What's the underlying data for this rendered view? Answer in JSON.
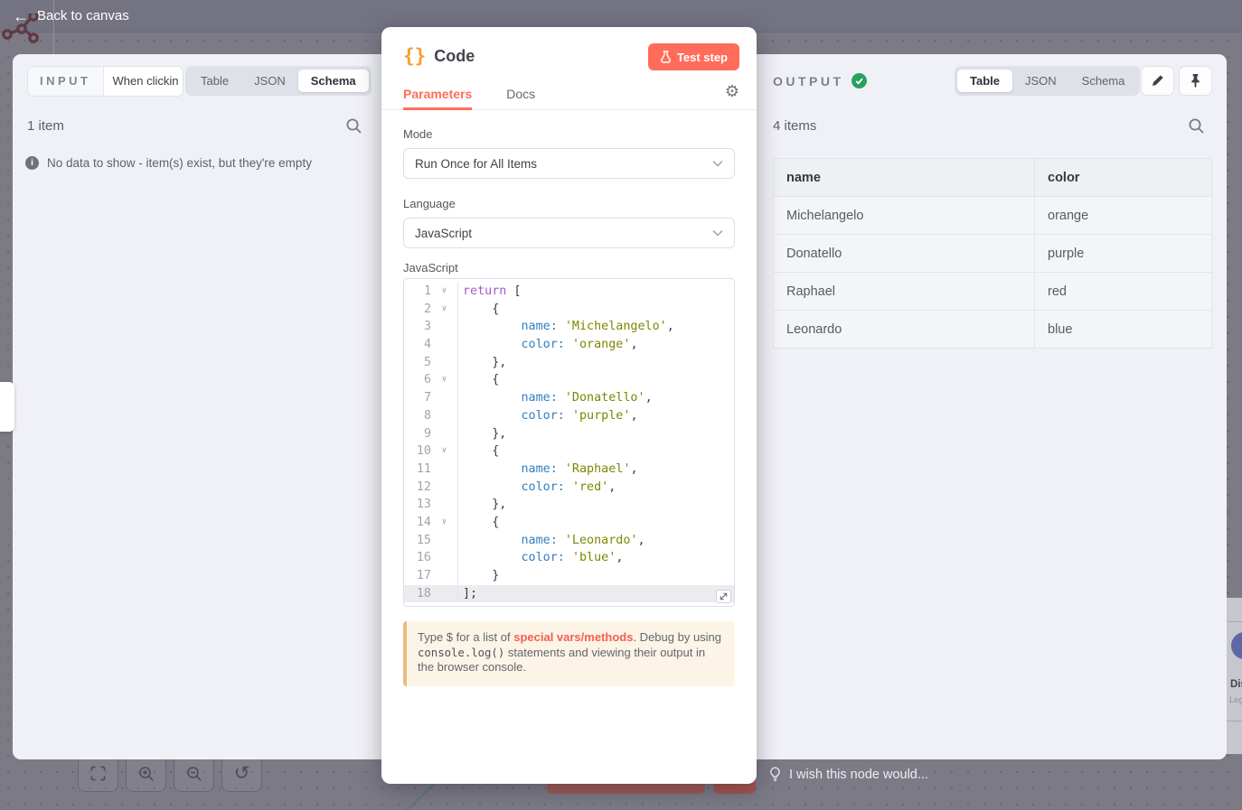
{
  "topbar": {
    "back_label": "Back to canvas"
  },
  "input_panel": {
    "title": "INPUT",
    "source_node": "When clickin",
    "tabs": [
      "Table",
      "JSON",
      "Schema"
    ],
    "active_tab": "Schema",
    "items_count": "1 item",
    "empty_message": "No data to show - item(s) exist, but they're empty"
  },
  "modal": {
    "icon": "{}",
    "title": "Code",
    "test_button_label": "Test step",
    "tabs": [
      "Parameters",
      "Docs"
    ],
    "active_tab": "Parameters",
    "mode": {
      "label": "Mode",
      "value": "Run Once for All Items"
    },
    "language": {
      "label": "Language",
      "value": "JavaScript"
    },
    "editor": {
      "label": "JavaScript",
      "lines": [
        {
          "n": "1",
          "fold": true,
          "s": [
            [
              "return",
              "k"
            ],
            [
              " [",
              "t"
            ]
          ]
        },
        {
          "n": "2",
          "fold": true,
          "s": [
            [
              "    {",
              "t"
            ]
          ]
        },
        {
          "n": "3",
          "s": [
            [
              "        ",
              "t"
            ],
            [
              "name:",
              "p"
            ],
            [
              " ",
              "t"
            ],
            [
              "'Michelangelo'",
              "s"
            ],
            [
              ",",
              "t"
            ]
          ]
        },
        {
          "n": "4",
          "s": [
            [
              "        ",
              "t"
            ],
            [
              "color:",
              "p"
            ],
            [
              " ",
              "t"
            ],
            [
              "'orange'",
              "s"
            ],
            [
              ",",
              "t"
            ]
          ]
        },
        {
          "n": "5",
          "s": [
            [
              "    },",
              "t"
            ]
          ]
        },
        {
          "n": "6",
          "fold": true,
          "s": [
            [
              "    {",
              "t"
            ]
          ]
        },
        {
          "n": "7",
          "s": [
            [
              "        ",
              "t"
            ],
            [
              "name:",
              "p"
            ],
            [
              " ",
              "t"
            ],
            [
              "'Donatello'",
              "s"
            ],
            [
              ",",
              "t"
            ]
          ]
        },
        {
          "n": "8",
          "s": [
            [
              "        ",
              "t"
            ],
            [
              "color:",
              "p"
            ],
            [
              " ",
              "t"
            ],
            [
              "'purple'",
              "s"
            ],
            [
              ",",
              "t"
            ]
          ]
        },
        {
          "n": "9",
          "s": [
            [
              "    },",
              "t"
            ]
          ]
        },
        {
          "n": "10",
          "fold": true,
          "s": [
            [
              "    {",
              "t"
            ]
          ]
        },
        {
          "n": "11",
          "s": [
            [
              "        ",
              "t"
            ],
            [
              "name:",
              "p"
            ],
            [
              " ",
              "t"
            ],
            [
              "'Raphael'",
              "s"
            ],
            [
              ",",
              "t"
            ]
          ]
        },
        {
          "n": "12",
          "s": [
            [
              "        ",
              "t"
            ],
            [
              "color:",
              "p"
            ],
            [
              " ",
              "t"
            ],
            [
              "'red'",
              "s"
            ],
            [
              ",",
              "t"
            ]
          ]
        },
        {
          "n": "13",
          "s": [
            [
              "    },",
              "t"
            ]
          ]
        },
        {
          "n": "14",
          "fold": true,
          "s": [
            [
              "    {",
              "t"
            ]
          ]
        },
        {
          "n": "15",
          "s": [
            [
              "        ",
              "t"
            ],
            [
              "name:",
              "p"
            ],
            [
              " ",
              "t"
            ],
            [
              "'Leonardo'",
              "s"
            ],
            [
              ",",
              "t"
            ]
          ]
        },
        {
          "n": "16",
          "s": [
            [
              "        ",
              "t"
            ],
            [
              "color:",
              "p"
            ],
            [
              " ",
              "t"
            ],
            [
              "'blue'",
              "s"
            ],
            [
              ",",
              "t"
            ]
          ]
        },
        {
          "n": "17",
          "s": [
            [
              "    }",
              "t"
            ]
          ]
        },
        {
          "n": "18",
          "active": true,
          "s": [
            [
              "];",
              "t"
            ]
          ]
        }
      ]
    },
    "hint": {
      "pre": "Type $ for a list of ",
      "link": "special vars/methods",
      "mid": ". Debug by using ",
      "code": "console.log()",
      "post": " statements and viewing their output in the browser console."
    }
  },
  "output_panel": {
    "title": "OUTPUT",
    "tabs": [
      "Table",
      "JSON",
      "Schema"
    ],
    "active_tab": "Table",
    "items_count": "4 items",
    "table": {
      "columns": [
        "name",
        "color"
      ],
      "rows": [
        [
          "Michelangelo",
          "orange"
        ],
        [
          "Donatello",
          "purple"
        ],
        [
          "Raphael",
          "red"
        ],
        [
          "Leonardo",
          "blue"
        ]
      ]
    }
  },
  "canvas": {
    "wish_text": "I wish this node would...",
    "controls": [
      "fit-view",
      "zoom-in",
      "zoom-out",
      "reset-zoom"
    ],
    "partial_node": {
      "line1": "Dis",
      "line2": "Lega"
    }
  },
  "colors": {
    "accent": "#ff6d5a",
    "success": "#29a15f",
    "syntax_keyword": "#a15cc4",
    "syntax_property": "#2f7fc1",
    "syntax_string": "#7d8600"
  }
}
